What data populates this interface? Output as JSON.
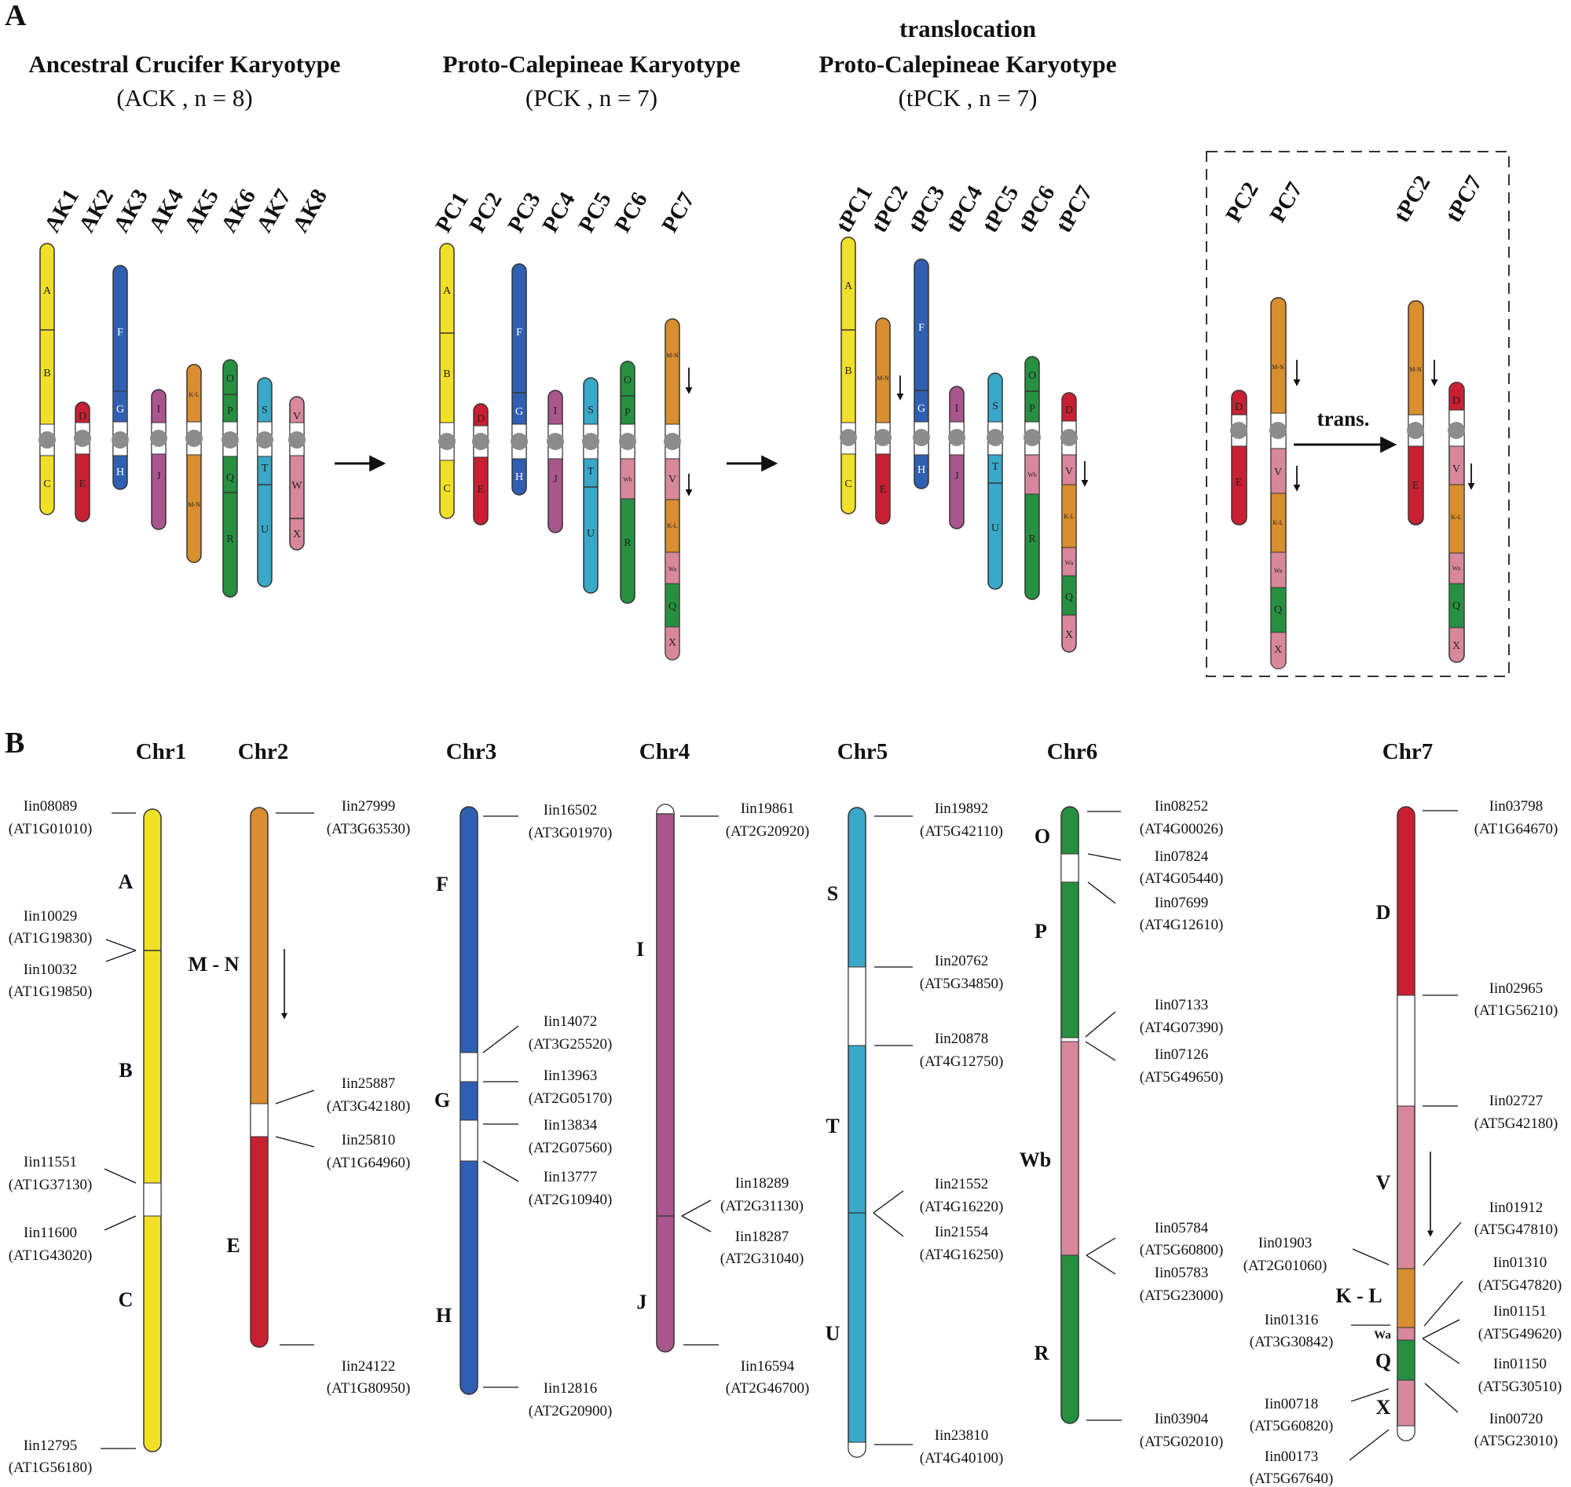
{
  "panel_labels": {
    "a": "A",
    "b": "B"
  },
  "karyotypes": {
    "ack": {
      "title": "Ancestral Crucifer Karyotype",
      "subtitle": "(ACK , n = 8)",
      "chromosomes": [
        "AK1",
        "AK2",
        "AK3",
        "AK4",
        "AK5",
        "AK6",
        "AK7",
        "AK8"
      ]
    },
    "pck": {
      "title": "Proto-Calepineae Karyotype",
      "subtitle": "(PCK , n = 7)",
      "chromosomes": [
        "PC1",
        "PC2",
        "PC3",
        "PC4",
        "PC5",
        "PC6",
        "PC7"
      ]
    },
    "tpck": {
      "title_top": "translocation",
      "title": "Proto-Calepineae Karyotype",
      "subtitle": "(tPCK , n = 7)",
      "chromosomes": [
        "tPC1",
        "tPC2",
        "tPC3",
        "tPC4",
        "tPC5",
        "tPC6",
        "tPC7"
      ]
    },
    "inset": {
      "before": [
        "PC2",
        "PC7"
      ],
      "after": [
        "tPC2",
        "tPC7"
      ],
      "arrow_label": "trans."
    }
  },
  "blocks": {
    "A": "A",
    "B": "B",
    "C": "C",
    "D": "D",
    "E": "E",
    "F": "F",
    "G": "G",
    "H": "H",
    "I": "I",
    "J": "J",
    "KL": "K-L",
    "MN": "M-N",
    "O": "O",
    "P": "P",
    "Q": "Q",
    "R": "R",
    "S": "S",
    "T": "T",
    "U": "U",
    "V": "V",
    "W": "W",
    "X": "X",
    "Wa": "Wa",
    "Wb": "Wb"
  },
  "colors": {
    "yellow": "#f0e028",
    "red": "#c82032",
    "blue": "#2f5fb2",
    "purple": "#a9568e",
    "orange": "#d98e2f",
    "green": "#269040",
    "cyan": "#3aa8c8",
    "pink": "#d8889a",
    "centromere": "#8c8c8c"
  },
  "panel_b": {
    "chromosomes": [
      "Chr1",
      "Chr2",
      "Chr3",
      "Chr4",
      "Chr5",
      "Chr6",
      "Chr7"
    ],
    "block_labels": {
      "A": "A",
      "B": "B",
      "C": "C",
      "MN": "M - N",
      "E": "E",
      "F": "F",
      "G": "G",
      "H": "H",
      "I": "I",
      "J": "J",
      "S": "S",
      "T": "T",
      "U": "U",
      "O": "O",
      "P": "P",
      "Wb": "Wb",
      "R": "R",
      "D": "D",
      "V": "V",
      "KL": "K - L",
      "Wa": "Wa",
      "Q": "Q",
      "X": "X"
    },
    "genes": {
      "chr1": [
        {
          "id": "Iin08089",
          "at": "(AT1G01010)"
        },
        {
          "id": "Iin10029",
          "at": "(AT1G19830)"
        },
        {
          "id": "Iin10032",
          "at": "(AT1G19850)"
        },
        {
          "id": "Iin11551",
          "at": "(AT1G37130)"
        },
        {
          "id": "Iin11600",
          "at": "(AT1G43020)"
        },
        {
          "id": "Iin12795",
          "at": "(AT1G56180)"
        }
      ],
      "chr2": [
        {
          "id": "Iin27999",
          "at": "(AT3G63530)"
        },
        {
          "id": "Iin25887",
          "at": "(AT3G42180)"
        },
        {
          "id": "Iin25810",
          "at": "(AT1G64960)"
        },
        {
          "id": "Iin24122",
          "at": "(AT1G80950)"
        }
      ],
      "chr3": [
        {
          "id": "Iin16502",
          "at": "(AT3G01970)"
        },
        {
          "id": "Iin14072",
          "at": "(AT3G25520)"
        },
        {
          "id": "Iin13963",
          "at": "(AT2G05170)"
        },
        {
          "id": "Iin13834",
          "at": "(AT2G07560)"
        },
        {
          "id": "Iin13777",
          "at": "(AT2G10940)"
        },
        {
          "id": "Iin12816",
          "at": "(AT2G20900)"
        }
      ],
      "chr4": [
        {
          "id": "Iin19861",
          "at": "(AT2G20920)"
        },
        {
          "id": "Iin18289",
          "at": "(AT2G31130)"
        },
        {
          "id": "Iin18287",
          "at": "(AT2G31040)"
        },
        {
          "id": "Iin16594",
          "at": "(AT2G46700)"
        }
      ],
      "chr5": [
        {
          "id": "Iin19892",
          "at": "(AT5G42110)"
        },
        {
          "id": "Iin20762",
          "at": "(AT5G34850)"
        },
        {
          "id": "Iin20878",
          "at": "(AT4G12750)"
        },
        {
          "id": "Iin21552",
          "at": "(AT4G16220)"
        },
        {
          "id": "Iin21554",
          "at": "(AT4G16250)"
        },
        {
          "id": "Iin23810",
          "at": "(AT4G40100)"
        }
      ],
      "chr6": [
        {
          "id": "Iin08252",
          "at": "(AT4G00026)"
        },
        {
          "id": "Iin07824",
          "at": "(AT4G05440)"
        },
        {
          "id": "Iin07699",
          "at": "(AT4G12610)"
        },
        {
          "id": "Iin07133",
          "at": "(AT4G07390)"
        },
        {
          "id": "Iin07126",
          "at": "(AT5G49650)"
        },
        {
          "id": "Iin05784",
          "at": "(AT5G60800)"
        },
        {
          "id": "Iin05783",
          "at": "(AT5G23000)"
        },
        {
          "id": "Iin03904",
          "at": "(AT5G02010)"
        }
      ],
      "chr7_right": [
        {
          "id": "Iin03798",
          "at": "(AT1G64670)"
        },
        {
          "id": "Iin02965",
          "at": "(AT1G56210)"
        },
        {
          "id": "Iin02727",
          "at": "(AT5G42180)"
        },
        {
          "id": "Iin01912",
          "at": "(AT5G47810)"
        },
        {
          "id": "Iin01310",
          "at": "(AT5G47820)"
        },
        {
          "id": "Iin01151",
          "at": "(AT5G49620)"
        },
        {
          "id": "Iin01150",
          "at": "(AT5G30510)"
        },
        {
          "id": "Iin00720",
          "at": "(AT5G23010)"
        }
      ],
      "chr7_left": [
        {
          "id": "Iin01903",
          "at": "(AT2G01060)"
        },
        {
          "id": "Iin01316",
          "at": "(AT3G30842)"
        },
        {
          "id": "Iin00718",
          "at": "(AT5G60820)"
        },
        {
          "id": "Iin00173",
          "at": "(AT5G67640)"
        }
      ]
    }
  }
}
